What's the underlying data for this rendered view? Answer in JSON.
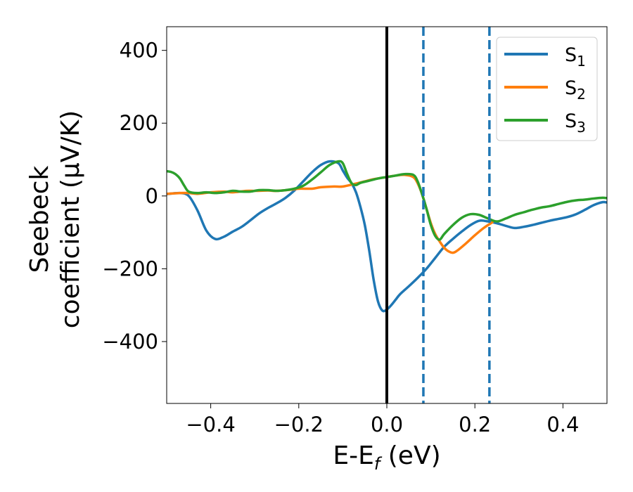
{
  "chart_data": {
    "type": "line",
    "xlabel": "E-E",
    "xlabel_subscript": "f",
    "xlabel_suffix": " (eV)",
    "ylabel_line1": "Seebeck",
    "ylabel_line2": "coefficient  (μV/K)",
    "xlim": [
      -0.5,
      0.5
    ],
    "ylim": [
      -570,
      465
    ],
    "x_ticks": [
      -0.4,
      -0.2,
      0.0,
      0.2,
      0.4
    ],
    "x_tick_labels": [
      "−0.4",
      "−0.2",
      "0.0",
      "0.2",
      "0.4"
    ],
    "y_ticks": [
      400,
      200,
      0,
      -200,
      -400
    ],
    "y_tick_labels": [
      "400",
      "200",
      "0",
      "−200",
      "−400"
    ],
    "grid": false,
    "legend_position": "top-right",
    "vertical_lines": [
      {
        "x": 0.0,
        "style": "solid",
        "color": "#000000"
      },
      {
        "x": 0.083,
        "style": "dashed",
        "color": "#1f77b4"
      },
      {
        "x": 0.233,
        "style": "dashed",
        "color": "#1f77b4"
      }
    ],
    "series": [
      {
        "name": "S",
        "subscript": "1",
        "color": "#1f77b4",
        "x": [
          -0.5,
          -0.47,
          -0.45,
          -0.43,
          -0.41,
          -0.39,
          -0.37,
          -0.35,
          -0.33,
          -0.31,
          -0.29,
          -0.27,
          -0.25,
          -0.23,
          -0.21,
          -0.19,
          -0.17,
          -0.15,
          -0.13,
          -0.11,
          -0.1,
          -0.09,
          -0.08,
          -0.07,
          -0.06,
          -0.05,
          -0.04,
          -0.03,
          -0.02,
          -0.01,
          0.0,
          0.01,
          0.02,
          0.03,
          0.05,
          0.07,
          0.09,
          0.11,
          0.13,
          0.15,
          0.17,
          0.19,
          0.21,
          0.23,
          0.25,
          0.27,
          0.29,
          0.31,
          0.33,
          0.35,
          0.37,
          0.39,
          0.41,
          0.43,
          0.45,
          0.47,
          0.49,
          0.5
        ],
        "y": [
          5,
          8,
          0,
          -40,
          -95,
          -118,
          -112,
          -98,
          -85,
          -67,
          -48,
          -33,
          -20,
          -5,
          15,
          40,
          65,
          85,
          95,
          90,
          70,
          50,
          35,
          10,
          -30,
          -80,
          -150,
          -230,
          -290,
          -315,
          -312,
          -300,
          -285,
          -270,
          -248,
          -225,
          -200,
          -170,
          -140,
          -118,
          -98,
          -80,
          -68,
          -70,
          -75,
          -82,
          -88,
          -85,
          -80,
          -74,
          -68,
          -63,
          -58,
          -50,
          -38,
          -25,
          -17,
          -18
        ]
      },
      {
        "name": "S",
        "subscript": "2",
        "color": "#ff7f0e",
        "x": [
          -0.5,
          -0.47,
          -0.45,
          -0.43,
          -0.4,
          -0.37,
          -0.35,
          -0.32,
          -0.3,
          -0.27,
          -0.25,
          -0.22,
          -0.2,
          -0.17,
          -0.15,
          -0.12,
          -0.1,
          -0.07,
          -0.05,
          -0.03,
          0.0,
          0.02,
          0.04,
          0.06,
          0.07,
          0.08,
          0.09,
          0.1,
          0.11,
          0.12,
          0.13,
          0.14,
          0.15,
          0.16,
          0.18,
          0.2,
          0.22,
          0.24
        ],
        "y": [
          6,
          8,
          8,
          6,
          10,
          12,
          10,
          14,
          14,
          15,
          14,
          17,
          20,
          20,
          24,
          26,
          26,
          34,
          40,
          46,
          52,
          56,
          58,
          52,
          35,
          5,
          -35,
          -75,
          -105,
          -125,
          -142,
          -152,
          -156,
          -150,
          -130,
          -108,
          -88,
          -72
        ]
      },
      {
        "name": "S",
        "subscript": "3",
        "color": "#2ca02c",
        "x": [
          -0.5,
          -0.49,
          -0.48,
          -0.47,
          -0.46,
          -0.45,
          -0.43,
          -0.41,
          -0.39,
          -0.37,
          -0.35,
          -0.33,
          -0.31,
          -0.29,
          -0.27,
          -0.25,
          -0.23,
          -0.21,
          -0.19,
          -0.17,
          -0.15,
          -0.13,
          -0.11,
          -0.1,
          -0.09,
          -0.08,
          -0.07,
          -0.06,
          -0.04,
          -0.02,
          0.0,
          0.02,
          0.04,
          0.06,
          0.07,
          0.08,
          0.09,
          0.1,
          0.11,
          0.12,
          0.13,
          0.15,
          0.17,
          0.19,
          0.21,
          0.23,
          0.25,
          0.27,
          0.29,
          0.31,
          0.33,
          0.35,
          0.37,
          0.39,
          0.41,
          0.43,
          0.45,
          0.47,
          0.49,
          0.5
        ],
        "y": [
          68,
          66,
          60,
          48,
          28,
          12,
          8,
          10,
          8,
          10,
          14,
          12,
          12,
          16,
          16,
          14,
          16,
          20,
          28,
          45,
          65,
          85,
          95,
          90,
          60,
          35,
          30,
          36,
          42,
          48,
          52,
          56,
          60,
          58,
          40,
          5,
          -35,
          -80,
          -110,
          -120,
          -105,
          -80,
          -60,
          -50,
          -52,
          -62,
          -70,
          -62,
          -52,
          -45,
          -38,
          -32,
          -28,
          -22,
          -16,
          -12,
          -10,
          -7,
          -5,
          -6
        ]
      }
    ]
  }
}
